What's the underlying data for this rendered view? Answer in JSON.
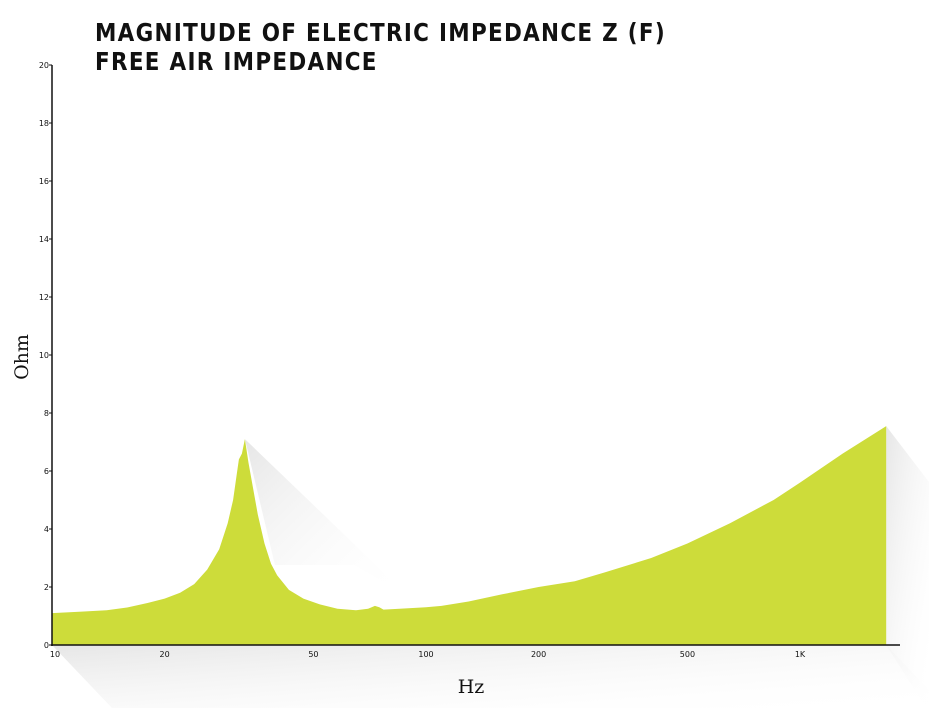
{
  "title": {
    "line1": "MAGNITUDE OF ELECTRIC IMPEDANCE Z (F)",
    "line2": "FREE AIR IMPEDANCE"
  },
  "colors": {
    "fill": "#cddc3a",
    "shadow": "#e6e6e6",
    "axis": "#111111"
  },
  "chart_data": {
    "type": "area",
    "title": "MAGNITUDE OF ELECTRIC IMPEDANCE Z (F)",
    "subtitle": "FREE AIR IMPEDANCE",
    "xlabel": "Hz",
    "ylabel": "Ohm",
    "xscale": "log",
    "xlim": [
      10,
      2000
    ],
    "ylim": [
      0,
      20
    ],
    "grid": false,
    "x_ticks": [
      {
        "value": 10,
        "label": "10"
      },
      {
        "value": 20,
        "label": "20"
      },
      {
        "value": 50,
        "label": "50"
      },
      {
        "value": 100,
        "label": "100"
      },
      {
        "value": 200,
        "label": "200"
      },
      {
        "value": 500,
        "label": "500"
      },
      {
        "value": 1000,
        "label": "1K"
      }
    ],
    "y_ticks": [
      {
        "value": 0,
        "label": "0"
      },
      {
        "value": 2,
        "label": "2"
      },
      {
        "value": 4,
        "label": "4"
      },
      {
        "value": 6,
        "label": "6"
      },
      {
        "value": 8,
        "label": "8"
      },
      {
        "value": 10,
        "label": "10"
      },
      {
        "value": 12,
        "label": "12"
      },
      {
        "value": 14,
        "label": "14"
      },
      {
        "value": 16,
        "label": "16"
      },
      {
        "value": 18,
        "label": "18"
      },
      {
        "value": 20,
        "label": "20"
      }
    ],
    "series": [
      {
        "points": [
          [
            10,
            1.1
          ],
          [
            12,
            1.15
          ],
          [
            14,
            1.2
          ],
          [
            16,
            1.3
          ],
          [
            18,
            1.45
          ],
          [
            20,
            1.6
          ],
          [
            22,
            1.8
          ],
          [
            24,
            2.1
          ],
          [
            26,
            2.6
          ],
          [
            28,
            3.3
          ],
          [
            29.5,
            4.2
          ],
          [
            30.5,
            5.0
          ],
          [
            31.2,
            5.9
          ],
          [
            31.6,
            6.4
          ],
          [
            32.2,
            6.6
          ],
          [
            32.8,
            7.1
          ],
          [
            33.5,
            6.3
          ],
          [
            34.5,
            5.4
          ],
          [
            35.5,
            4.5
          ],
          [
            37,
            3.5
          ],
          [
            38.5,
            2.8
          ],
          [
            40,
            2.4
          ],
          [
            43,
            1.9
          ],
          [
            47,
            1.6
          ],
          [
            52,
            1.4
          ],
          [
            58,
            1.25
          ],
          [
            65,
            1.2
          ],
          [
            70,
            1.25
          ],
          [
            73,
            1.35
          ],
          [
            75,
            1.3
          ],
          [
            77,
            1.22
          ],
          [
            85,
            1.25
          ],
          [
            100,
            1.3
          ],
          [
            110,
            1.35
          ],
          [
            130,
            1.5
          ],
          [
            160,
            1.75
          ],
          [
            200,
            2.0
          ],
          [
            250,
            2.2
          ],
          [
            300,
            2.5
          ],
          [
            400,
            3.0
          ],
          [
            500,
            3.5
          ],
          [
            650,
            4.2
          ],
          [
            850,
            5.0
          ],
          [
            1000,
            5.6
          ],
          [
            1300,
            6.6
          ],
          [
            1700,
            7.55
          ]
        ]
      }
    ]
  }
}
